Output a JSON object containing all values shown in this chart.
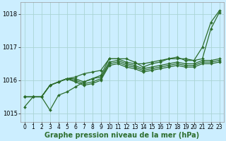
{
  "x": [
    0,
    1,
    2,
    3,
    4,
    5,
    6,
    7,
    8,
    9,
    10,
    11,
    12,
    13,
    14,
    15,
    16,
    17,
    18,
    19,
    20,
    21,
    22,
    23
  ],
  "series": [
    [
      1015.2,
      1015.5,
      1015.5,
      1015.1,
      1015.55,
      1015.65,
      1015.8,
      1015.95,
      1016.05,
      1016.15,
      1016.65,
      1016.65,
      1016.65,
      1016.55,
      1016.4,
      1016.5,
      1016.55,
      1016.65,
      1016.65,
      1016.65,
      1016.6,
      1017.0,
      1017.75,
      1018.1
    ],
    [
      1015.5,
      1015.5,
      1015.5,
      1015.85,
      1015.95,
      1016.05,
      1016.1,
      1016.2,
      1016.25,
      1016.3,
      1016.65,
      1016.65,
      1016.55,
      1016.5,
      1016.5,
      1016.55,
      1016.6,
      1016.65,
      1016.7,
      1016.6,
      1016.6,
      1016.65,
      1017.55,
      1018.05
    ],
    [
      1015.5,
      1015.5,
      1015.5,
      1015.85,
      1015.95,
      1016.05,
      1016.05,
      1015.95,
      1016.05,
      1016.1,
      1016.55,
      1016.6,
      1016.5,
      1016.45,
      1016.35,
      1016.4,
      1016.45,
      1016.5,
      1016.55,
      1016.5,
      1016.5,
      1016.6,
      1016.6,
      1016.65
    ],
    [
      1015.5,
      1015.5,
      1015.5,
      1015.85,
      1015.95,
      1016.05,
      1016.0,
      1015.9,
      1015.95,
      1016.05,
      1016.5,
      1016.55,
      1016.45,
      1016.4,
      1016.3,
      1016.35,
      1016.4,
      1016.45,
      1016.5,
      1016.45,
      1016.45,
      1016.55,
      1016.55,
      1016.6
    ],
    [
      1015.5,
      1015.5,
      1015.5,
      1015.85,
      1015.95,
      1016.05,
      1015.95,
      1015.85,
      1015.9,
      1016.0,
      1016.45,
      1016.5,
      1016.4,
      1016.35,
      1016.25,
      1016.3,
      1016.35,
      1016.4,
      1016.45,
      1016.4,
      1016.4,
      1016.5,
      1016.5,
      1016.55
    ]
  ],
  "line_color": "#2d6e2d",
  "marker": "D",
  "marker_size": 2.0,
  "line_width": 0.9,
  "bg_color": "#cceeff",
  "grid_color": "#aad4d4",
  "ylim": [
    1014.75,
    1018.35
  ],
  "yticks": [
    1015,
    1016,
    1017,
    1018
  ],
  "xticks": [
    0,
    1,
    2,
    3,
    4,
    5,
    6,
    7,
    8,
    9,
    10,
    11,
    12,
    13,
    14,
    15,
    16,
    17,
    18,
    19,
    20,
    21,
    22,
    23
  ],
  "xlabel": "Graphe pression niveau de la mer (hPa)",
  "xlabel_fontsize": 7,
  "tick_fontsize": 5.5,
  "ytick_fontsize": 6
}
